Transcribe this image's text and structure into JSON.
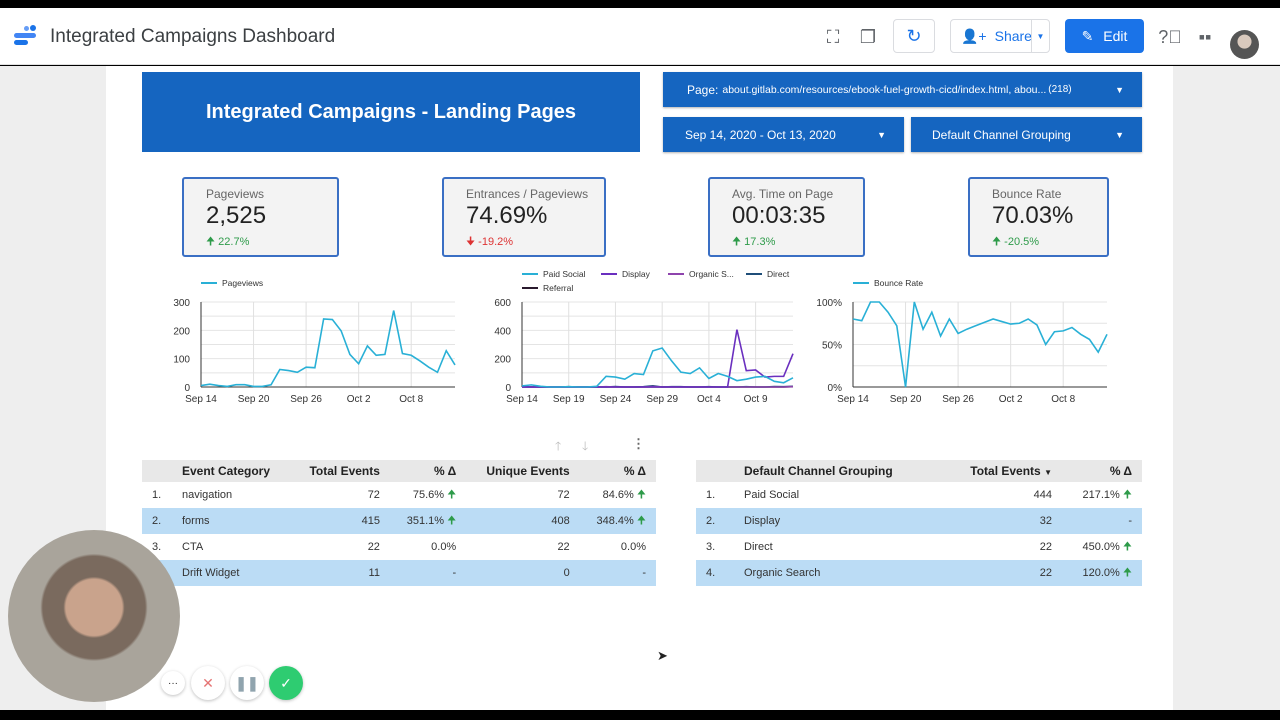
{
  "header": {
    "title": "Integrated Campaigns Dashboard",
    "share_label": "Share",
    "edit_label": "Edit",
    "icons": [
      "fullscreen-icon",
      "copy-icon",
      "refresh-icon",
      "help-icon",
      "apps-icon"
    ]
  },
  "report": {
    "title": "Integrated Campaigns - Landing Pages",
    "filters": {
      "page_label": "Page:",
      "page_value": "about.gitlab.com/resources/ebook-fuel-growth-cicd/index.html, abou...",
      "page_count": "(218)",
      "date_range": "Sep 14, 2020 - Oct 13, 2020",
      "channel": "Default Channel Grouping"
    },
    "brand_color": "#1565c0"
  },
  "kpis": [
    {
      "label": "Pageviews",
      "value": "2,525",
      "delta": "22.7%",
      "dir": "up"
    },
    {
      "label": "Entrances / Pageviews",
      "value": "74.69%",
      "delta": "-19.2%",
      "dir": "down"
    },
    {
      "label": "Avg. Time on Page",
      "value": "00:03:35",
      "delta": "17.3%",
      "dir": "up"
    },
    {
      "label": "Bounce Rate",
      "value": "70.03%",
      "delta": "-20.5%",
      "dir": "up"
    }
  ],
  "chart_data": [
    {
      "type": "line",
      "x_start": "Sep 14",
      "x_end": "Oct 13",
      "ylim": [
        0,
        300
      ],
      "yticks": [
        "0",
        "100",
        "200",
        "300"
      ],
      "xticks": [
        "Sep 14",
        "Sep 20",
        "Sep 26",
        "Oct 2",
        "Oct 8"
      ],
      "legend": "top-left",
      "grid": true,
      "series": [
        {
          "name": "Pageviews",
          "color": "#29b0d6",
          "values": [
            5,
            10,
            5,
            2,
            8,
            8,
            2,
            2,
            8,
            62,
            58,
            52,
            70,
            68,
            240,
            238,
            198,
            115,
            82,
            145,
            112,
            115,
            270,
            118,
            112,
            92,
            70,
            52,
            128,
            78
          ]
        }
      ]
    },
    {
      "type": "line",
      "x_start": "Sep 14",
      "x_end": "Oct 13",
      "ylim": [
        0,
        600
      ],
      "yticks": [
        "0",
        "200",
        "400",
        "600"
      ],
      "xticks": [
        "Sep 14",
        "Sep 19",
        "Sep 24",
        "Sep 29",
        "Oct 4",
        "Oct 9"
      ],
      "legend": "top",
      "grid": true,
      "series": [
        {
          "name": "Paid Social",
          "color": "#29b0d6",
          "values": [
            8,
            15,
            5,
            0,
            0,
            2,
            0,
            0,
            5,
            75,
            70,
            55,
            95,
            88,
            255,
            275,
            185,
            105,
            95,
            135,
            60,
            95,
            75,
            45,
            55,
            70,
            75,
            40,
            30,
            65
          ]
        },
        {
          "name": "Display",
          "color": "#6a2fbf",
          "values": [
            0,
            0,
            0,
            0,
            0,
            0,
            0,
            0,
            0,
            0,
            0,
            0,
            0,
            0,
            0,
            0,
            0,
            0,
            0,
            0,
            0,
            0,
            0,
            405,
            115,
            120,
            70,
            75,
            75,
            235
          ]
        },
        {
          "name": "Organic S...",
          "color": "#8e44ad",
          "values": [
            0,
            0,
            0,
            0,
            0,
            0,
            0,
            0,
            0,
            2,
            0,
            0,
            0,
            0,
            3,
            0,
            0,
            0,
            0,
            0,
            0,
            0,
            0,
            0,
            0,
            0,
            0,
            0,
            0,
            3
          ]
        },
        {
          "name": "Direct",
          "color": "#1f4e79",
          "values": [
            2,
            0,
            0,
            0,
            0,
            2,
            0,
            0,
            0,
            0,
            3,
            0,
            0,
            2,
            8,
            0,
            2,
            2,
            0,
            0,
            2,
            0,
            0,
            0,
            2,
            0,
            0,
            3,
            2,
            5
          ]
        },
        {
          "name": "Referral",
          "color": "#2a1a2e",
          "values": [
            0,
            0,
            0,
            0,
            0,
            0,
            0,
            0,
            0,
            0,
            0,
            0,
            0,
            0,
            0,
            0,
            0,
            0,
            0,
            0,
            0,
            0,
            0,
            0,
            0,
            0,
            0,
            0,
            0,
            2
          ]
        }
      ]
    },
    {
      "type": "line",
      "x_start": "Sep 14",
      "x_end": "Oct 13",
      "ylim": [
        0,
        100
      ],
      "yticks": [
        "0%",
        "50%",
        "100%"
      ],
      "xticks": [
        "Sep 14",
        "Sep 20",
        "Sep 26",
        "Oct 2",
        "Oct 8"
      ],
      "legend": "top-left",
      "grid": true,
      "series": [
        {
          "name": "Bounce Rate",
          "color": "#29b0d6",
          "values": [
            80,
            78,
            100,
            100,
            88,
            72,
            0,
            100,
            68,
            88,
            60,
            80,
            63,
            68,
            72,
            76,
            80,
            77,
            74,
            75,
            80,
            73,
            50,
            65,
            66,
            70,
            62,
            56,
            41,
            62
          ]
        }
      ]
    }
  ],
  "events_table": {
    "headers": [
      "Event Category",
      "Total Events",
      "% Δ",
      "Unique Events",
      "% Δ"
    ],
    "rows": [
      {
        "n": "1.",
        "cat": "navigation",
        "total": "72",
        "d1": "75.6%",
        "up1": true,
        "uniq": "72",
        "d2": "84.6%",
        "up2": true
      },
      {
        "n": "2.",
        "cat": "forms",
        "total": "415",
        "d1": "351.1%",
        "up1": true,
        "uniq": "408",
        "d2": "348.4%",
        "up2": true
      },
      {
        "n": "3.",
        "cat": "CTA",
        "total": "22",
        "d1": "0.0%",
        "up1": false,
        "uniq": "22",
        "d2": "0.0%",
        "up2": false
      },
      {
        "n": "",
        "cat": "Drift Widget",
        "total": "11",
        "d1": "-",
        "up1": false,
        "uniq": "0",
        "d2": "-",
        "up2": false
      }
    ]
  },
  "channel_table": {
    "headers": [
      "Default Channel Grouping",
      "Total Events",
      "% Δ"
    ],
    "rows": [
      {
        "n": "1.",
        "ch": "Paid Social",
        "total": "444",
        "d": "217.1%",
        "up": true
      },
      {
        "n": "2.",
        "ch": "Display",
        "total": "32",
        "d": "-",
        "up": false
      },
      {
        "n": "3.",
        "ch": "Direct",
        "total": "22",
        "d": "450.0%",
        "up": true
      },
      {
        "n": "4.",
        "ch": "Organic Search",
        "total": "22",
        "d": "120.0%",
        "up": true
      }
    ]
  },
  "recorder": {
    "more": "···"
  }
}
